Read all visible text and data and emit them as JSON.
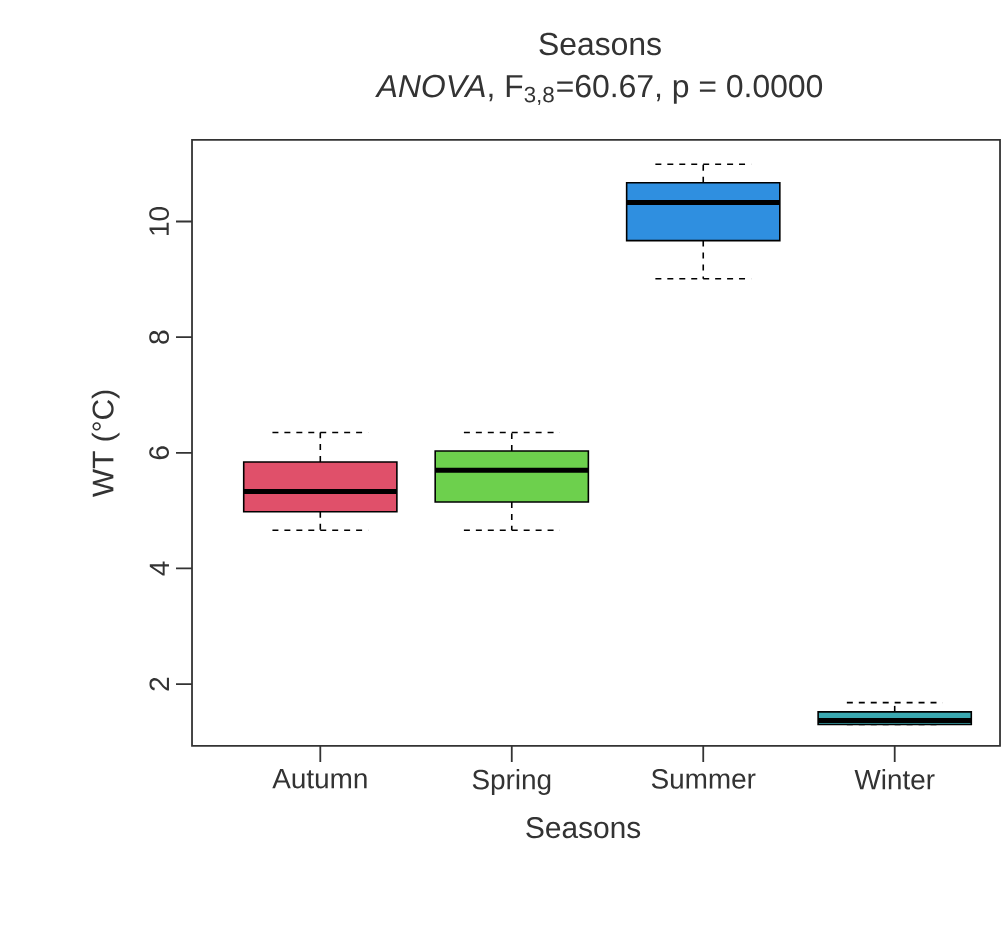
{
  "chart_data": {
    "type": "box",
    "title": "Seasons",
    "subtitle": "*ANOVA*, F$_{3,8}$=60.67, p = 0.0000",
    "xlabel": "Seasons",
    "ylabel": "WT (°C)",
    "categories": [
      "Autumn",
      "Spring",
      "Summer",
      "Winter"
    ],
    "boxes": [
      {
        "low": 4.66,
        "q1": 4.98,
        "median": 5.33,
        "q3": 5.84,
        "high": 6.35
      },
      {
        "low": 4.66,
        "q1": 5.15,
        "median": 5.7,
        "q3": 6.03,
        "high": 6.35
      },
      {
        "low": 9.01,
        "q1": 9.67,
        "median": 10.33,
        "q3": 10.67,
        "high": 10.99
      },
      {
        "low": 1.3,
        "q1": 1.3,
        "median": 1.37,
        "q3": 1.52,
        "high": 1.68
      }
    ],
    "colors": [
      "#e0506a",
      "#6dd04d",
      "#2f8fe0",
      "#3aa8b0"
    ],
    "ylim": [
      0.93,
      11.41
    ],
    "yticks": [
      2,
      4,
      6,
      8,
      10
    ]
  }
}
